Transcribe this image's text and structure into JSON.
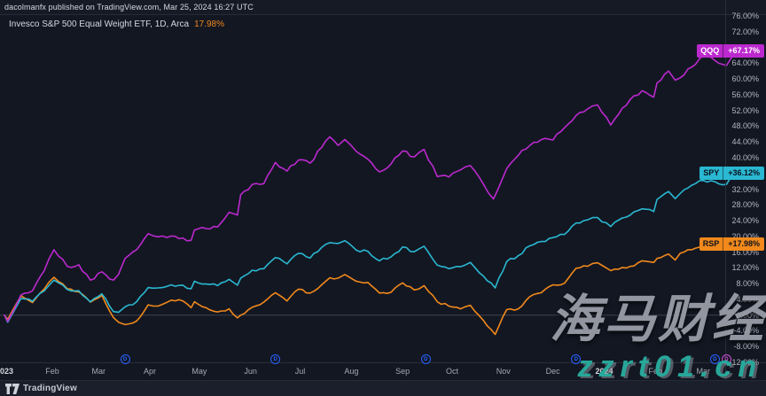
{
  "header": {
    "published": "dacolmanfx published on TradingView.com, Mar 25, 2024 16:27 UTC"
  },
  "legend": {
    "symbol_title": "Invesco S&P 500 Equal Weight ETF, 1D, Arca",
    "change": "17.98%"
  },
  "chart_data": {
    "type": "line",
    "x_range": [
      "2023-01-03",
      "2024-03-25"
    ],
    "grid": "off",
    "legend_position": "right-axis-pills",
    "y_axis": {
      "unit": "%",
      "min": -12,
      "max": 76,
      "step": 4,
      "labels": [
        "76.00%",
        "72.00%",
        "68.00%",
        "64.00%",
        "60.00%",
        "56.00%",
        "52.00%",
        "48.00%",
        "44.00%",
        "40.00%",
        "36.00%",
        "32.00%",
        "28.00%",
        "24.00%",
        "20.00%",
        "16.00%",
        "12.00%",
        "8.00%",
        "4.00%",
        "0.00%",
        "-4.00%",
        "-8.00%",
        "-12.00%"
      ]
    },
    "x_ticks": [
      {
        "date": "2023-01-03",
        "label": "2023",
        "major": true
      },
      {
        "date": "2023-02-01",
        "label": "Feb"
      },
      {
        "date": "2023-03-01",
        "label": "Mar"
      },
      {
        "date": "2023-04-01",
        "label": "Apr"
      },
      {
        "date": "2023-05-01",
        "label": "May"
      },
      {
        "date": "2023-06-01",
        "label": "Jun"
      },
      {
        "date": "2023-07-01",
        "label": "Jul"
      },
      {
        "date": "2023-08-01",
        "label": "Aug"
      },
      {
        "date": "2023-09-01",
        "label": "Sep"
      },
      {
        "date": "2023-10-01",
        "label": "Oct"
      },
      {
        "date": "2023-11-01",
        "label": "Nov"
      },
      {
        "date": "2023-12-01",
        "label": "Dec"
      },
      {
        "date": "2024-01-01",
        "label": "2024",
        "major": true
      },
      {
        "date": "2024-02-01",
        "label": "Feb"
      },
      {
        "date": "2024-03-01",
        "label": "Mar"
      }
    ],
    "series": [
      {
        "id": "qqq",
        "ticker": "QQQ",
        "color": "#bb29ce",
        "pill_text_color": "#ffffff",
        "last_value": 67.17,
        "last_label": "+67.17%",
        "jitter": 0.9,
        "points": [
          [
            "2023-01-03",
            0
          ],
          [
            "2023-01-05",
            -1.6
          ],
          [
            "2023-01-09",
            1.6
          ],
          [
            "2023-01-13",
            5.1
          ],
          [
            "2023-01-20",
            6.2
          ],
          [
            "2023-01-27",
            11.2
          ],
          [
            "2023-02-02",
            16.6
          ],
          [
            "2023-02-10",
            12.4
          ],
          [
            "2023-02-17",
            12.8
          ],
          [
            "2023-02-24",
            8.9
          ],
          [
            "2023-03-03",
            11.0
          ],
          [
            "2023-03-10",
            8.9
          ],
          [
            "2023-03-13",
            10.3
          ],
          [
            "2023-03-17",
            14.4
          ],
          [
            "2023-03-24",
            16.6
          ],
          [
            "2023-03-31",
            20.7
          ],
          [
            "2023-04-06",
            19.9
          ],
          [
            "2023-04-14",
            20.1
          ],
          [
            "2023-04-21",
            19.6
          ],
          [
            "2023-04-26",
            19.0
          ],
          [
            "2023-04-28",
            21.6
          ],
          [
            "2023-05-05",
            22.0
          ],
          [
            "2023-05-12",
            22.4
          ],
          [
            "2023-05-19",
            26.1
          ],
          [
            "2023-05-24",
            25.4
          ],
          [
            "2023-05-26",
            30.6
          ],
          [
            "2023-06-02",
            33.2
          ],
          [
            "2023-06-09",
            33.4
          ],
          [
            "2023-06-16",
            38.8
          ],
          [
            "2023-06-23",
            36.6
          ],
          [
            "2023-06-30",
            39.4
          ],
          [
            "2023-07-07",
            38.6
          ],
          [
            "2023-07-14",
            42.6
          ],
          [
            "2023-07-19",
            45.3
          ],
          [
            "2023-07-24",
            43.1
          ],
          [
            "2023-07-28",
            44.6
          ],
          [
            "2023-08-04",
            41.6
          ],
          [
            "2023-08-11",
            39.6
          ],
          [
            "2023-08-18",
            36.4
          ],
          [
            "2023-08-25",
            38.4
          ],
          [
            "2023-09-01",
            41.7
          ],
          [
            "2023-09-08",
            40.2
          ],
          [
            "2023-09-14",
            42.1
          ],
          [
            "2023-09-22",
            35.2
          ],
          [
            "2023-09-29",
            35.1
          ],
          [
            "2023-10-06",
            36.9
          ],
          [
            "2023-10-12",
            38.0
          ],
          [
            "2023-10-20",
            33.2
          ],
          [
            "2023-10-26",
            29.5
          ],
          [
            "2023-11-03",
            37.2
          ],
          [
            "2023-11-10",
            40.6
          ],
          [
            "2023-11-17",
            43.1
          ],
          [
            "2023-11-24",
            44.6
          ],
          [
            "2023-12-01",
            44.5
          ],
          [
            "2023-12-08",
            47.6
          ],
          [
            "2023-12-15",
            50.7
          ],
          [
            "2023-12-22",
            52.4
          ],
          [
            "2023-12-28",
            53.4
          ],
          [
            "2024-01-05",
            48.3
          ],
          [
            "2024-01-12",
            52.6
          ],
          [
            "2024-01-19",
            55.7
          ],
          [
            "2024-01-24",
            57.0
          ],
          [
            "2024-01-31",
            55.4
          ],
          [
            "2024-02-02",
            59.0
          ],
          [
            "2024-02-09",
            62.0
          ],
          [
            "2024-02-13",
            59.7
          ],
          [
            "2024-02-16",
            60.3
          ],
          [
            "2024-02-23",
            63.0
          ],
          [
            "2024-03-01",
            66.0
          ],
          [
            "2024-03-08",
            64.7
          ],
          [
            "2024-03-15",
            63.4
          ],
          [
            "2024-03-21",
            68.2
          ],
          [
            "2024-03-25",
            67.17
          ]
        ]
      },
      {
        "id": "spy",
        "ticker": "SPY",
        "color": "#2ab8d2",
        "pill_text_color": "#0c121c",
        "last_value": 36.12,
        "last_label": "+36.12%",
        "jitter": 0.7,
        "points": [
          [
            "2023-01-03",
            0
          ],
          [
            "2023-01-05",
            -1.8
          ],
          [
            "2023-01-09",
            1.2
          ],
          [
            "2023-01-13",
            4.2
          ],
          [
            "2023-01-20",
            3.5
          ],
          [
            "2023-01-27",
            6.1
          ],
          [
            "2023-02-02",
            8.9
          ],
          [
            "2023-02-10",
            6.5
          ],
          [
            "2023-02-17",
            6.2
          ],
          [
            "2023-02-24",
            3.4
          ],
          [
            "2023-03-03",
            5.4
          ],
          [
            "2023-03-10",
            0.9
          ],
          [
            "2023-03-13",
            0.7
          ],
          [
            "2023-03-17",
            2.1
          ],
          [
            "2023-03-24",
            3.4
          ],
          [
            "2023-03-31",
            7.0
          ],
          [
            "2023-04-06",
            6.9
          ],
          [
            "2023-04-14",
            7.7
          ],
          [
            "2023-04-21",
            7.6
          ],
          [
            "2023-04-26",
            6.7
          ],
          [
            "2023-04-28",
            8.6
          ],
          [
            "2023-05-05",
            7.9
          ],
          [
            "2023-05-12",
            7.5
          ],
          [
            "2023-05-19",
            9.1
          ],
          [
            "2023-05-24",
            7.6
          ],
          [
            "2023-05-26",
            9.4
          ],
          [
            "2023-06-02",
            11.4
          ],
          [
            "2023-06-09",
            11.8
          ],
          [
            "2023-06-16",
            14.6
          ],
          [
            "2023-06-23",
            13.0
          ],
          [
            "2023-06-30",
            15.7
          ],
          [
            "2023-07-07",
            14.5
          ],
          [
            "2023-07-14",
            17.2
          ],
          [
            "2023-07-19",
            18.4
          ],
          [
            "2023-07-24",
            18.2
          ],
          [
            "2023-07-28",
            18.9
          ],
          [
            "2023-08-04",
            16.5
          ],
          [
            "2023-08-11",
            16.2
          ],
          [
            "2023-08-18",
            13.8
          ],
          [
            "2023-08-25",
            14.8
          ],
          [
            "2023-09-01",
            17.3
          ],
          [
            "2023-09-08",
            16.1
          ],
          [
            "2023-09-14",
            17.5
          ],
          [
            "2023-09-22",
            12.7
          ],
          [
            "2023-09-29",
            11.8
          ],
          [
            "2023-10-06",
            12.3
          ],
          [
            "2023-10-12",
            13.4
          ],
          [
            "2023-10-20",
            9.9
          ],
          [
            "2023-10-27",
            6.9
          ],
          [
            "2023-11-03",
            13.6
          ],
          [
            "2023-11-10",
            15.1
          ],
          [
            "2023-11-17",
            17.6
          ],
          [
            "2023-11-24",
            18.7
          ],
          [
            "2023-12-01",
            19.7
          ],
          [
            "2023-12-08",
            20.5
          ],
          [
            "2023-12-15",
            23.4
          ],
          [
            "2023-12-22",
            24.2
          ],
          [
            "2023-12-28",
            24.8
          ],
          [
            "2024-01-05",
            22.5
          ],
          [
            "2024-01-12",
            24.7
          ],
          [
            "2024-01-19",
            26.2
          ],
          [
            "2024-01-24",
            27.0
          ],
          [
            "2024-01-31",
            26.3
          ],
          [
            "2024-02-02",
            29.4
          ],
          [
            "2024-02-09",
            31.4
          ],
          [
            "2024-02-13",
            29.6
          ],
          [
            "2024-02-16",
            30.9
          ],
          [
            "2024-02-23",
            33.0
          ],
          [
            "2024-03-01",
            34.2
          ],
          [
            "2024-03-08",
            33.9
          ],
          [
            "2024-03-15",
            33.2
          ],
          [
            "2024-03-21",
            36.7
          ],
          [
            "2024-03-25",
            36.12
          ]
        ]
      },
      {
        "id": "rsp",
        "ticker": "RSP",
        "color": "#f1891c",
        "pill_text_color": "#0c121c",
        "last_value": 17.98,
        "last_label": "+17.98%",
        "jitter": 0.6,
        "points": [
          [
            "2023-01-03",
            0
          ],
          [
            "2023-01-05",
            -1.1
          ],
          [
            "2023-01-09",
            2.0
          ],
          [
            "2023-01-13",
            4.9
          ],
          [
            "2023-01-20",
            3.2
          ],
          [
            "2023-01-27",
            6.6
          ],
          [
            "2023-02-02",
            9.6
          ],
          [
            "2023-02-10",
            6.7
          ],
          [
            "2023-02-17",
            5.9
          ],
          [
            "2023-02-24",
            3.3
          ],
          [
            "2023-03-03",
            5.0
          ],
          [
            "2023-03-10",
            -0.6
          ],
          [
            "2023-03-13",
            -1.8
          ],
          [
            "2023-03-17",
            -2.4
          ],
          [
            "2023-03-24",
            -1.5
          ],
          [
            "2023-03-31",
            2.6
          ],
          [
            "2023-04-06",
            2.3
          ],
          [
            "2023-04-14",
            3.8
          ],
          [
            "2023-04-21",
            3.6
          ],
          [
            "2023-04-26",
            1.9
          ],
          [
            "2023-04-28",
            3.4
          ],
          [
            "2023-05-05",
            1.9
          ],
          [
            "2023-05-12",
            0.8
          ],
          [
            "2023-05-19",
            1.6
          ],
          [
            "2023-05-24",
            -0.7
          ],
          [
            "2023-05-26",
            0.0
          ],
          [
            "2023-06-02",
            2.0
          ],
          [
            "2023-06-09",
            3.3
          ],
          [
            "2023-06-16",
            5.7
          ],
          [
            "2023-06-23",
            3.6
          ],
          [
            "2023-06-30",
            6.6
          ],
          [
            "2023-07-07",
            5.6
          ],
          [
            "2023-07-14",
            7.7
          ],
          [
            "2023-07-19",
            9.5
          ],
          [
            "2023-07-24",
            9.4
          ],
          [
            "2023-07-28",
            10.3
          ],
          [
            "2023-08-04",
            8.6
          ],
          [
            "2023-08-11",
            8.3
          ],
          [
            "2023-08-18",
            5.6
          ],
          [
            "2023-08-25",
            5.8
          ],
          [
            "2023-09-01",
            8.2
          ],
          [
            "2023-09-08",
            6.4
          ],
          [
            "2023-09-14",
            7.5
          ],
          [
            "2023-09-22",
            3.4
          ],
          [
            "2023-09-29",
            2.3
          ],
          [
            "2023-10-06",
            1.6
          ],
          [
            "2023-10-12",
            2.5
          ],
          [
            "2023-10-20",
            -1.4
          ],
          [
            "2023-10-27",
            -4.9
          ],
          [
            "2023-11-03",
            1.4
          ],
          [
            "2023-11-10",
            1.6
          ],
          [
            "2023-11-17",
            4.7
          ],
          [
            "2023-11-24",
            5.7
          ],
          [
            "2023-12-01",
            7.7
          ],
          [
            "2023-12-08",
            8.1
          ],
          [
            "2023-12-15",
            11.9
          ],
          [
            "2023-12-22",
            12.4
          ],
          [
            "2023-12-28",
            13.3
          ],
          [
            "2024-01-05",
            11.3
          ],
          [
            "2024-01-12",
            12.1
          ],
          [
            "2024-01-19",
            12.5
          ],
          [
            "2024-01-24",
            13.8
          ],
          [
            "2024-01-31",
            13.4
          ],
          [
            "2024-02-02",
            14.4
          ],
          [
            "2024-02-09",
            15.5
          ],
          [
            "2024-02-13",
            14.0
          ],
          [
            "2024-02-16",
            15.7
          ],
          [
            "2024-02-23",
            16.6
          ],
          [
            "2024-03-01",
            17.6
          ],
          [
            "2024-03-08",
            18.1
          ],
          [
            "2024-03-15",
            17.1
          ],
          [
            "2024-03-21",
            19.2
          ],
          [
            "2024-03-25",
            17.98
          ]
        ]
      }
    ],
    "dividend_markers": [
      {
        "date": "2023-03-17",
        "letter": "D",
        "color": "#2962ff"
      },
      {
        "date": "2023-06-16",
        "letter": "D",
        "color": "#2962ff"
      },
      {
        "date": "2023-09-15",
        "letter": "D",
        "color": "#2962ff"
      },
      {
        "date": "2023-12-15",
        "letter": "D",
        "color": "#2962ff"
      },
      {
        "date": "2024-03-08",
        "letter": "D",
        "color": "#2962ff"
      },
      {
        "date": "2024-03-15",
        "letter": "D",
        "color": "#d052d8"
      }
    ]
  },
  "watermark": {
    "line1": "海马财经",
    "line2": "zzrt01.cn",
    "accent": "#27a79a"
  },
  "footer": {
    "brand": "TradingView"
  },
  "colors": {
    "background": "#131722",
    "panel": "#1b1f2b",
    "border": "#2a2e39",
    "axis_text": "#b2b5be",
    "header_text": "#d6d9e0",
    "legend_change_orange": "#f1891c",
    "zero_line": "rgba(178,181,190,0.28)"
  }
}
